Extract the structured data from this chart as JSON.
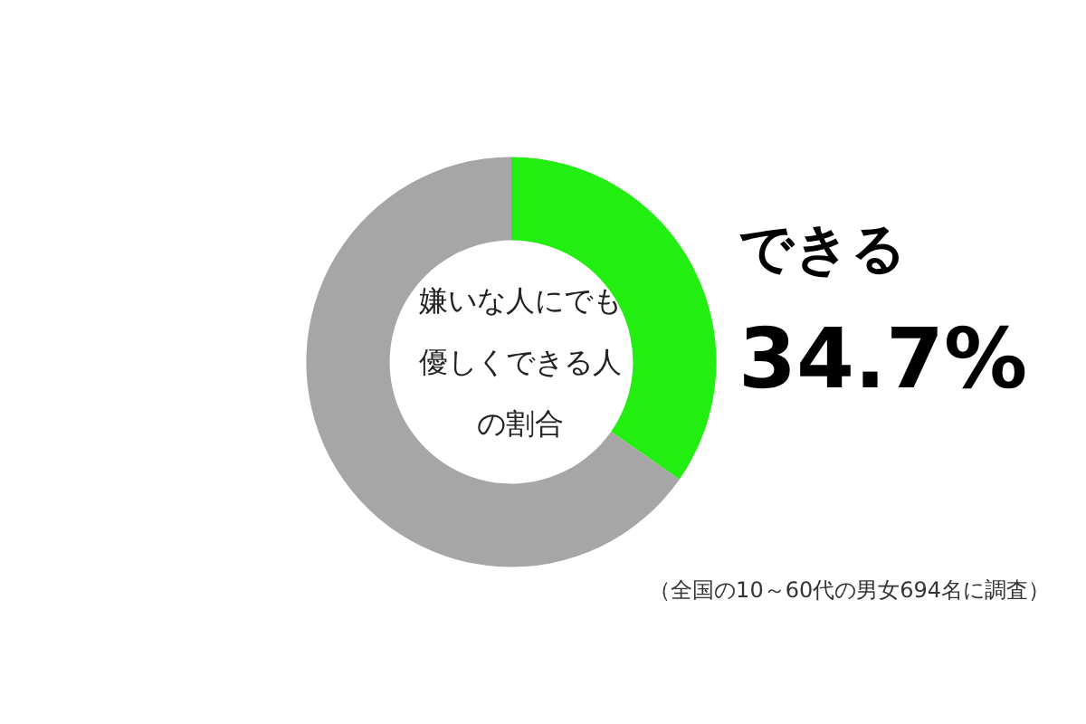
{
  "chart_data": {
    "type": "donut",
    "title": "嫌いな人にでも優しくできる人の割合",
    "categories": [
      "できる",
      null
    ],
    "values": [
      34.7,
      65.3
    ],
    "colors": [
      "#22ee11",
      "#a6a6a6"
    ],
    "value_labels": [
      "34.7%",
      null
    ],
    "legend": false,
    "annotations": [
      "（全国の10～60代の男女694名に調査）"
    ]
  }
}
